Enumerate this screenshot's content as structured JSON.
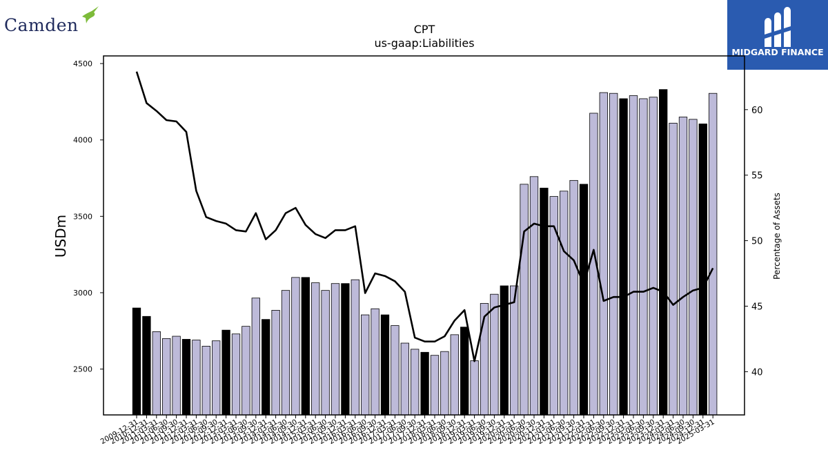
{
  "header": {
    "left_logo_text": "Camden",
    "right_logo_text": "MIDGARD FINANCE"
  },
  "colors": {
    "bar_fill": "#bdbad9",
    "bar_highlight": "#000000",
    "line": "#000000",
    "logo_left": "#1f2a5c",
    "logo_bird": "#7dbb3a",
    "logo_right_bg": "#2a5bb0"
  },
  "chart_data": {
    "type": "bar",
    "title": "CPT",
    "subtitle": "us-gaap:Liabilities",
    "ylabel": "USDm",
    "y2label": "Percentage of Assets",
    "ylim": [
      2200,
      4550
    ],
    "y2lim": [
      36.7,
      64.1
    ],
    "yticks": [
      2500,
      3000,
      3500,
      4000,
      4500
    ],
    "y2ticks": [
      40,
      45,
      50,
      55,
      60
    ],
    "grid": false,
    "categories": [
      "2009-12-31",
      "2010-12-31",
      "2011-03-31",
      "2011-06-30",
      "2011-09-30",
      "2011-12-31",
      "2012-03-31",
      "2012-06-30",
      "2012-09-30",
      "2012-12-31",
      "2013-03-31",
      "2013-06-30",
      "2013-09-30",
      "2013-12-31",
      "2014-03-31",
      "2014-06-30",
      "2014-09-30",
      "2014-12-31",
      "2015-03-31",
      "2015-06-30",
      "2015-09-30",
      "2015-12-31",
      "2016-03-31",
      "2016-06-30",
      "2016-09-30",
      "2016-12-31",
      "2017-03-31",
      "2017-06-30",
      "2017-09-30",
      "2017-12-31",
      "2018-03-31",
      "2018-06-30",
      "2018-09-30",
      "2018-12-31",
      "2019-03-31",
      "2019-06-30",
      "2019-09-30",
      "2019-12-31",
      "2020-03-31",
      "2020-06-30",
      "2020-09-30",
      "2020-12-31",
      "2021-03-31",
      "2021-06-30",
      "2021-09-30",
      "2021-12-31",
      "2022-03-31",
      "2022-06-30",
      "2022-09-30",
      "2022-12-31",
      "2023-03-31",
      "2023-06-30",
      "2023-09-30",
      "2023-12-31",
      "2024-03-31",
      "2024-06-30",
      "2024-09-30",
      "2024-12-31",
      "2025-03-31"
    ],
    "tick_labels": [
      "2009-12-31",
      "2010-12-31",
      "2011-03-31",
      "2011-06-30",
      "2011-09-30",
      "2011-12-31",
      "2012-03-31",
      "2012-06-30",
      "2012-09-30",
      "2012-12-31",
      "2013-03-31",
      "2013-06-30",
      "2013-09-30",
      "2013-12-31",
      "2014-03-31",
      "2014-06-30",
      "2014-09-30",
      "2014-12-31",
      "2015-03-31",
      "2015-06-30",
      "2015-09-30",
      "2015-12-31",
      "2016-03-31",
      "2016-06-30",
      "2016-09-30",
      "2016-12-31",
      "2017-03-31",
      "2017-06-30",
      "2017-09-30",
      "2017-12-31",
      "2018-03-31",
      "2018-06-30",
      "2018-09-30",
      "2018-12-31",
      "2019-03-31",
      "2019-06-30",
      "2019-09-30",
      "2019-12-31",
      "2020-03-31",
      "2020-06-30",
      "2020-09-30",
      "2020-12-31",
      "2021-03-31",
      "2021-06-30",
      "2021-09-30",
      "2021-12-31",
      "2022-03-31",
      "2022-06-30",
      "2022-09-30",
      "2022-12-31",
      "2023-03-31",
      "2023-06-30",
      "2023-09-30",
      "2023-12-31",
      "2024-03-31",
      "2024-06-30",
      "2024-09-30",
      "2024-12-31",
      "2025-03-31"
    ],
    "series": [
      {
        "kind": "bar",
        "axis": "left",
        "values": [
          2900,
          2845,
          2745,
          2700,
          2715,
          2695,
          2690,
          2650,
          2685,
          2755,
          2730,
          2780,
          2965,
          2825,
          2885,
          3015,
          3100,
          3100,
          3065,
          3015,
          3060,
          3060,
          3085,
          2855,
          2895,
          2855,
          2785,
          2670,
          2630,
          2610,
          2590,
          2615,
          2725,
          2775,
          2555,
          2930,
          2990,
          3045,
          3045,
          3710,
          3760,
          3685,
          3630,
          3665,
          3735,
          3710,
          4175,
          4310,
          4305,
          4270,
          4290,
          4270,
          4280,
          4330,
          4110,
          4150,
          4135,
          4105,
          4305
        ],
        "highlight": [
          true,
          true,
          false,
          false,
          false,
          true,
          false,
          false,
          false,
          true,
          false,
          false,
          false,
          true,
          false,
          false,
          false,
          true,
          false,
          false,
          false,
          true,
          false,
          false,
          false,
          true,
          false,
          false,
          false,
          true,
          false,
          false,
          false,
          true,
          false,
          false,
          false,
          true,
          false,
          false,
          false,
          true,
          false,
          false,
          false,
          true,
          false,
          false,
          false,
          true,
          false,
          false,
          false,
          true,
          false,
          false,
          false,
          true,
          false
        ]
      },
      {
        "kind": "line",
        "axis": "right",
        "values": [
          62.9,
          60.5,
          59.9,
          59.2,
          59.1,
          58.3,
          53.8,
          51.8,
          51.5,
          51.3,
          50.8,
          50.7,
          52.1,
          50.1,
          50.8,
          52.1,
          52.5,
          51.2,
          50.5,
          50.2,
          50.8,
          50.8,
          51.1,
          46.0,
          47.5,
          47.3,
          46.9,
          46.1,
          42.6,
          42.3,
          42.3,
          42.7,
          43.9,
          44.7,
          40.8,
          44.2,
          44.9,
          45.1,
          45.3,
          50.7,
          51.3,
          51.1,
          51.1,
          49.2,
          48.5,
          46.7,
          49.3,
          45.4,
          45.7,
          45.7,
          46.1,
          46.1,
          46.4,
          46.1,
          45.1,
          45.7,
          46.2,
          46.4,
          47.9
        ]
      }
    ]
  }
}
